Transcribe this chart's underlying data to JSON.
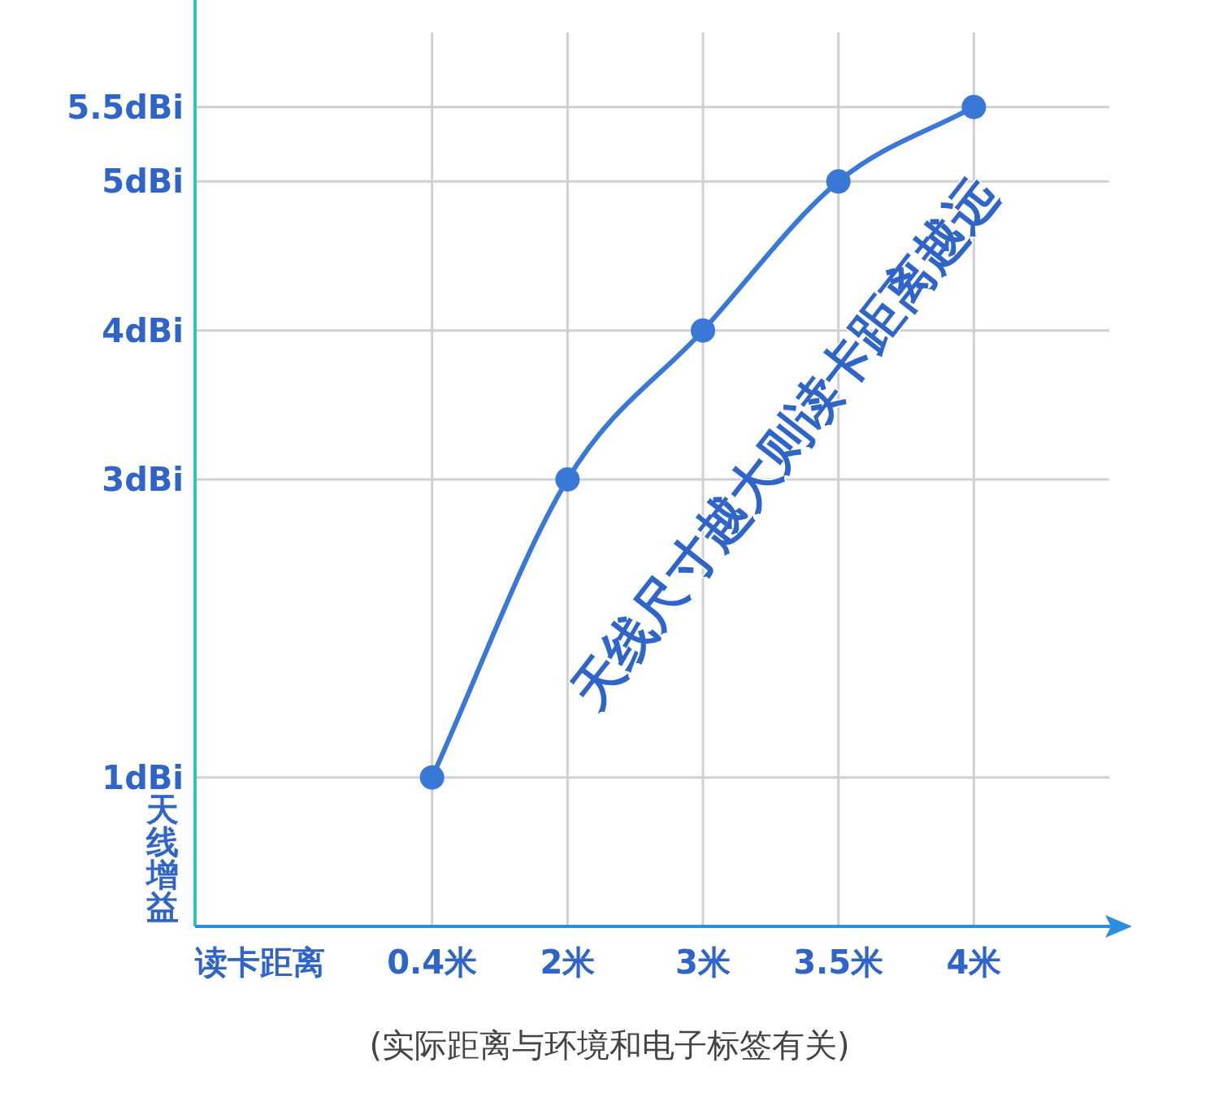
{
  "chart_data": {
    "type": "line",
    "xlabel": "读卡距离",
    "ylabel": "天线增益",
    "categories": [
      "0.4米",
      "2米",
      "3米",
      "3.5米",
      "4米"
    ],
    "series": [
      {
        "color": "#3a78d8",
        "values": [
          1,
          3,
          4,
          5,
          5.5
        ]
      }
    ],
    "ylim": [
      0,
      6
    ],
    "yticks": [
      {
        "value": 1,
        "label": "1dBi"
      },
      {
        "value": 3,
        "label": "3dBi"
      },
      {
        "value": 4,
        "label": "4dBi"
      },
      {
        "value": 5,
        "label": "5dBi"
      },
      {
        "value": 5.5,
        "label": "5.5dBi"
      }
    ],
    "grid": true,
    "marker": "circle",
    "annotations": [
      "天线尺寸越大则读卡距离越远",
      "(实际距离与环境和电子标签有关)"
    ]
  }
}
